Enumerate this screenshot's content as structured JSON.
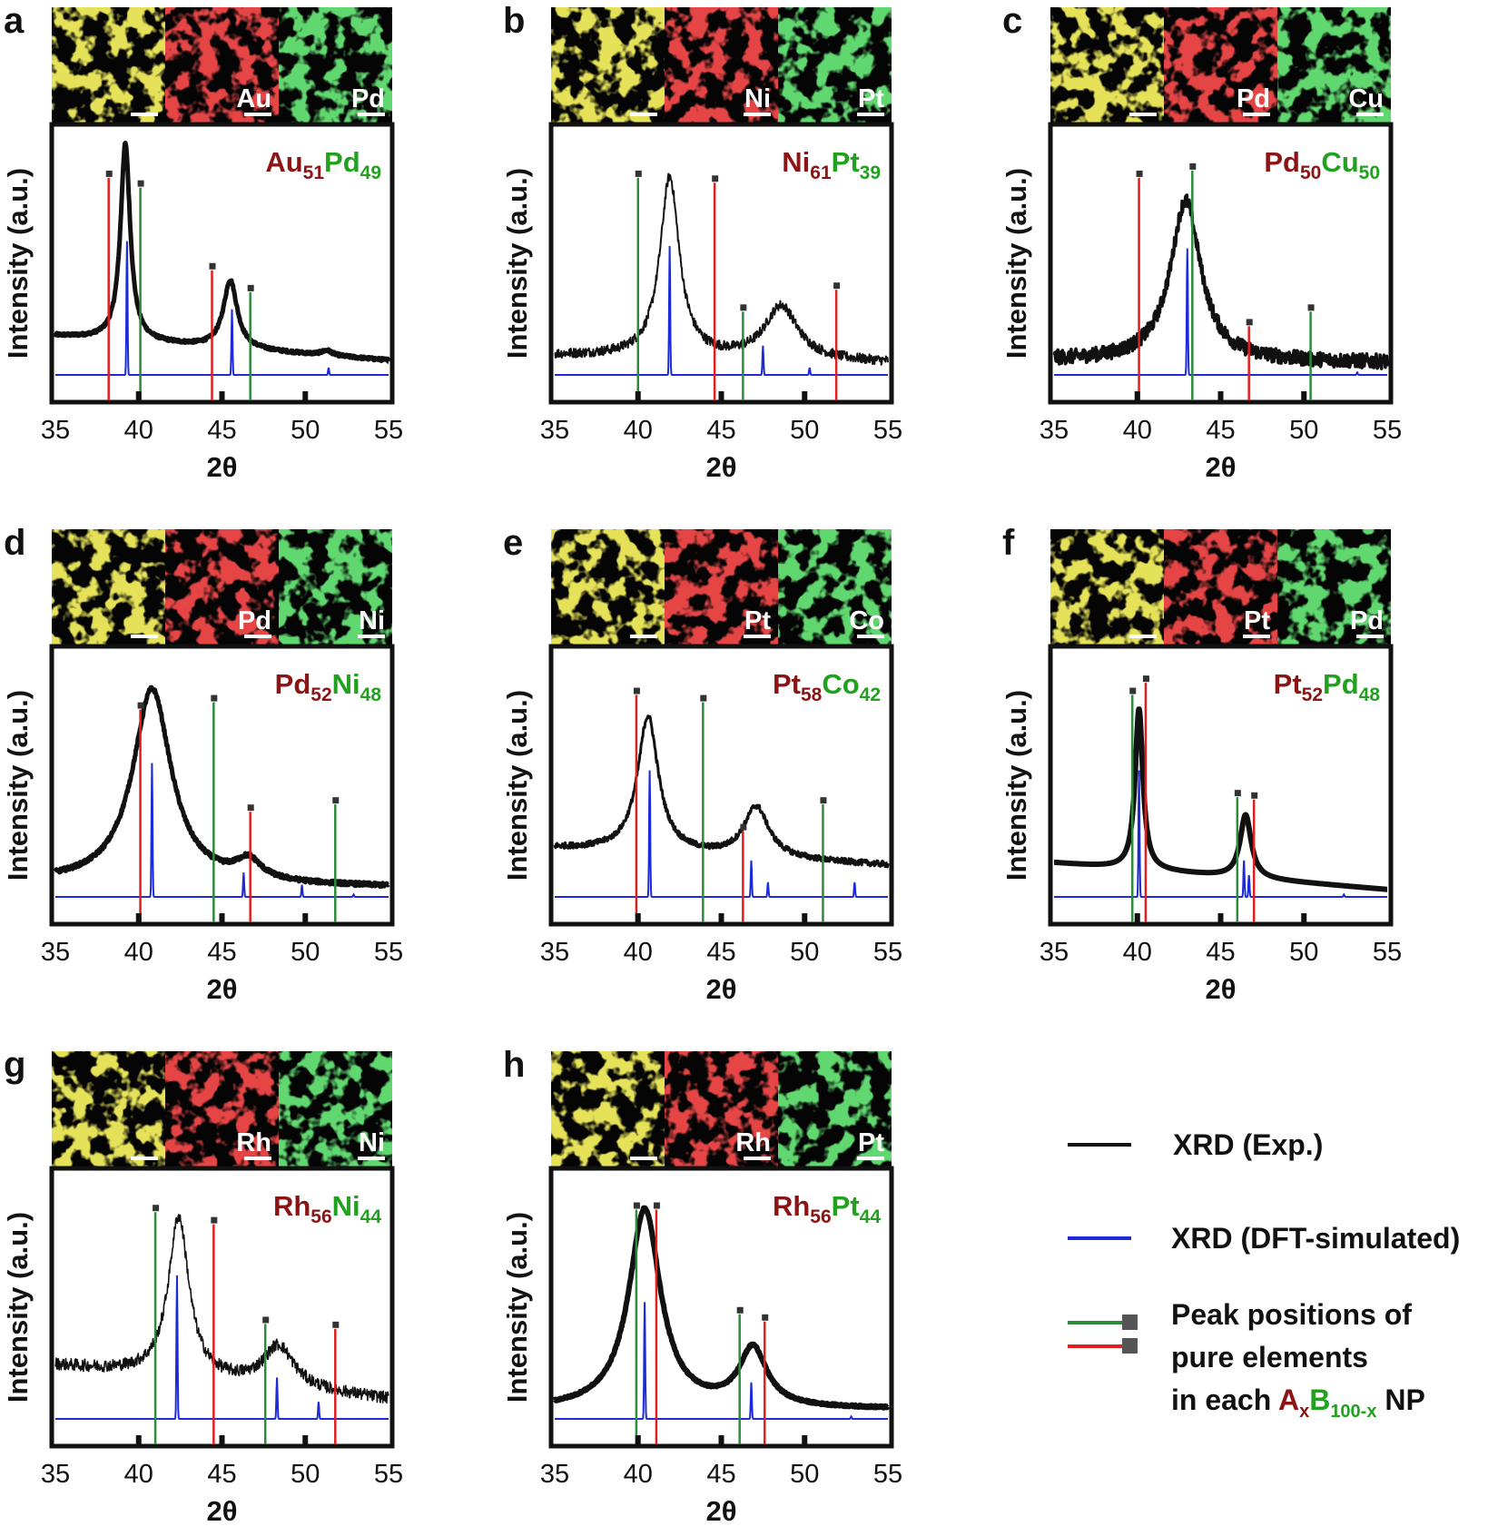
{
  "colors": {
    "exp": "#111111",
    "dft": "#1c2bd6",
    "peakA": "#e02020",
    "peakB": "#2e8b3c",
    "compA": "#8b1414",
    "compB": "#22a020",
    "mapYellow": "#c8c020",
    "mapRed": "#c01818",
    "mapGreen": "#20a828"
  },
  "axis_common": {
    "xlabel": "2θ",
    "ylabel": "Intensity (a.u.)",
    "xticks": [
      "35",
      "40",
      "45",
      "50",
      "55"
    ]
  },
  "chart_data": [
    {
      "type": "line",
      "panel": "a",
      "xlim": [
        35,
        55
      ],
      "title": {
        "a": "Au",
        "a_sub": "51",
        "b": "Pd",
        "b_sub": "49"
      },
      "map_labels": [
        "Au",
        "Pd"
      ],
      "exp_peaks": [
        {
          "x": 39.2,
          "h": 0.81,
          "w": 0.35
        },
        {
          "x": 45.5,
          "h": 0.28,
          "w": 0.5
        },
        {
          "x": 51.3,
          "h": 0.02,
          "w": 0.4
        }
      ],
      "exp_baseline": [
        0.16,
        0.06
      ],
      "exp_noise": 0.006,
      "exp_width": 5,
      "dft_peaks": [
        {
          "x": 39.3,
          "h": 0.55
        },
        {
          "x": 45.6,
          "h": 0.27
        },
        {
          "x": 51.4,
          "h": 0.03
        }
      ],
      "lines_A": [
        {
          "x": 38.2,
          "h": 0.81
        },
        {
          "x": 44.4,
          "h": 0.43
        }
      ],
      "lines_B": [
        {
          "x": 40.1,
          "h": 0.77
        },
        {
          "x": 46.7,
          "h": 0.34
        }
      ]
    },
    {
      "type": "line",
      "panel": "b",
      "xlim": [
        35,
        55
      ],
      "title": {
        "a": "Ni",
        "a_sub": "61",
        "b": "Pt",
        "b_sub": "39"
      },
      "map_labels": [
        "Ni",
        "Pt"
      ],
      "exp_peaks": [
        {
          "x": 41.9,
          "h": 0.74,
          "w": 0.7
        },
        {
          "x": 48.6,
          "h": 0.22,
          "w": 1.2
        }
      ],
      "exp_baseline": [
        0.08,
        0.05
      ],
      "exp_noise": 0.02,
      "exp_width": 2,
      "dft_peaks": [
        {
          "x": 41.9,
          "h": 0.53
        },
        {
          "x": 47.5,
          "h": 0.12
        },
        {
          "x": 50.3,
          "h": 0.03
        }
      ],
      "lines_A": [
        {
          "x": 44.6,
          "h": 0.79
        },
        {
          "x": 51.9,
          "h": 0.35
        }
      ],
      "lines_B": [
        {
          "x": 40.0,
          "h": 0.81
        },
        {
          "x": 46.3,
          "h": 0.26
        }
      ]
    },
    {
      "type": "line",
      "panel": "c",
      "xlim": [
        35,
        55
      ],
      "title": {
        "a": "Pd",
        "a_sub": "50",
        "b": "Cu",
        "b_sub": "50"
      },
      "map_labels": [
        "Pd",
        "Cu"
      ],
      "exp_peaks": [
        {
          "x": 42.9,
          "h": 0.66,
          "w": 1.1
        }
      ],
      "exp_baseline": [
        0.06,
        0.05
      ],
      "exp_noise": 0.03,
      "exp_width": 3.5,
      "dft_peaks": [
        {
          "x": 43.0,
          "h": 0.52
        },
        {
          "x": 53.2,
          "h": 0.01
        }
      ],
      "lines_A": [
        {
          "x": 40.1,
          "h": 0.81
        },
        {
          "x": 46.7,
          "h": 0.2
        }
      ],
      "lines_B": [
        {
          "x": 43.3,
          "h": 0.84
        },
        {
          "x": 50.4,
          "h": 0.26
        }
      ]
    },
    {
      "type": "line",
      "panel": "d",
      "xlim": [
        35,
        55
      ],
      "title": {
        "a": "Pd",
        "a_sub": "52",
        "b": "Ni",
        "b_sub": "48"
      },
      "map_labels": [
        "Pd",
        "Ni"
      ],
      "exp_peaks": [
        {
          "x": 40.8,
          "h": 0.8,
          "w": 1.4
        },
        {
          "x": 46.6,
          "h": 0.08,
          "w": 0.9
        }
      ],
      "exp_baseline": [
        0.06,
        0.04
      ],
      "exp_noise": 0.008,
      "exp_width": 5,
      "dft_peaks": [
        {
          "x": 40.8,
          "h": 0.55
        },
        {
          "x": 46.3,
          "h": 0.1
        },
        {
          "x": 49.8,
          "h": 0.05
        },
        {
          "x": 52.9,
          "h": 0.01
        }
      ],
      "lines_A": [
        {
          "x": 40.1,
          "h": 0.77
        },
        {
          "x": 46.7,
          "h": 0.35
        }
      ],
      "lines_B": [
        {
          "x": 44.5,
          "h": 0.8
        },
        {
          "x": 51.8,
          "h": 0.38
        }
      ]
    },
    {
      "type": "line",
      "panel": "e",
      "xlim": [
        35,
        55
      ],
      "title": {
        "a": "Pt",
        "a_sub": "58",
        "b": "Co",
        "b_sub": "42"
      },
      "map_labels": [
        "Pt",
        "Co"
      ],
      "exp_peaks": [
        {
          "x": 40.6,
          "h": 0.56,
          "w": 0.75
        },
        {
          "x": 47.1,
          "h": 0.21,
          "w": 0.9
        }
      ],
      "exp_baseline": [
        0.2,
        0.13
      ],
      "exp_noise": 0.012,
      "exp_width": 3,
      "dft_peaks": [
        {
          "x": 40.7,
          "h": 0.52
        },
        {
          "x": 46.8,
          "h": 0.15
        },
        {
          "x": 47.8,
          "h": 0.06
        },
        {
          "x": 53.0,
          "h": 0.06
        }
      ],
      "lines_A": [
        {
          "x": 39.9,
          "h": 0.83
        },
        {
          "x": 46.3,
          "h": 0.27
        }
      ],
      "lines_B": [
        {
          "x": 43.9,
          "h": 0.8
        },
        {
          "x": 51.1,
          "h": 0.38
        }
      ]
    },
    {
      "type": "line",
      "panel": "f",
      "xlim": [
        35,
        55
      ],
      "title": {
        "a": "Pt",
        "a_sub": "52",
        "b": "Pd",
        "b_sub": "48"
      },
      "map_labels": [
        "Pt",
        "Pd"
      ],
      "exp_peaks": [
        {
          "x": 40.1,
          "h": 0.66,
          "w": 0.28
        },
        {
          "x": 46.5,
          "h": 0.26,
          "w": 0.4
        }
      ],
      "exp_baseline": [
        0.14,
        0.03
      ],
      "exp_noise": 0.0,
      "exp_width": 6,
      "dft_peaks": [
        {
          "x": 40.1,
          "h": 0.52
        },
        {
          "x": 46.4,
          "h": 0.15
        },
        {
          "x": 46.7,
          "h": 0.09
        },
        {
          "x": 52.4,
          "h": 0.01
        }
      ],
      "lines_A": [
        {
          "x": 40.5,
          "h": 0.88
        },
        {
          "x": 47.0,
          "h": 0.4
        }
      ],
      "lines_B": [
        {
          "x": 39.7,
          "h": 0.83
        },
        {
          "x": 46.0,
          "h": 0.41
        }
      ]
    },
    {
      "type": "line",
      "panel": "g",
      "xlim": [
        35,
        55
      ],
      "title": {
        "a": "Rh",
        "a_sub": "56",
        "b": "Ni",
        "b_sub": "44"
      },
      "map_labels": [
        "Rh",
        "Ni"
      ],
      "exp_peaks": [
        {
          "x": 42.4,
          "h": 0.66,
          "w": 0.75
        },
        {
          "x": 48.4,
          "h": 0.17,
          "w": 1.1
        }
      ],
      "exp_baseline": [
        0.22,
        0.08
      ],
      "exp_noise": 0.025,
      "exp_width": 1.6,
      "dft_peaks": [
        {
          "x": 42.3,
          "h": 0.59
        },
        {
          "x": 48.3,
          "h": 0.17
        },
        {
          "x": 50.8,
          "h": 0.07
        }
      ],
      "lines_A": [
        {
          "x": 44.5,
          "h": 0.8
        },
        {
          "x": 51.8,
          "h": 0.37
        }
      ],
      "lines_B": [
        {
          "x": 41.0,
          "h": 0.85
        },
        {
          "x": 47.6,
          "h": 0.39
        }
      ]
    },
    {
      "type": "line",
      "panel": "h",
      "xlim": [
        35,
        55
      ],
      "title": {
        "a": "Rh",
        "a_sub": "56",
        "b": "Pt",
        "b_sub": "44"
      },
      "map_labels": [
        "Rh",
        "Pt"
      ],
      "exp_peaks": [
        {
          "x": 40.4,
          "h": 0.82,
          "w": 1.15
        },
        {
          "x": 46.9,
          "h": 0.24,
          "w": 1.0
        }
      ],
      "exp_baseline": [
        0.04,
        0.04
      ],
      "exp_noise": 0.004,
      "exp_width": 6,
      "dft_peaks": [
        {
          "x": 40.4,
          "h": 0.48
        },
        {
          "x": 46.8,
          "h": 0.15
        },
        {
          "x": 52.8,
          "h": 0.01
        }
      ],
      "lines_A": [
        {
          "x": 41.1,
          "h": 0.86
        },
        {
          "x": 47.6,
          "h": 0.4
        }
      ],
      "lines_B": [
        {
          "x": 39.9,
          "h": 0.86
        },
        {
          "x": 46.1,
          "h": 0.43
        }
      ]
    }
  ],
  "legend": {
    "exp": "XRD (Exp.)",
    "dft": "XRD (DFT-simulated)",
    "peak_line1": "Peak positions of",
    "peak_line2": "pure elements",
    "peak_line3_prefix": "in each ",
    "peak_A": "A",
    "peak_A_sub": "x",
    "peak_B": "B",
    "peak_B_sub": "100-x",
    "peak_suffix": " NP"
  }
}
